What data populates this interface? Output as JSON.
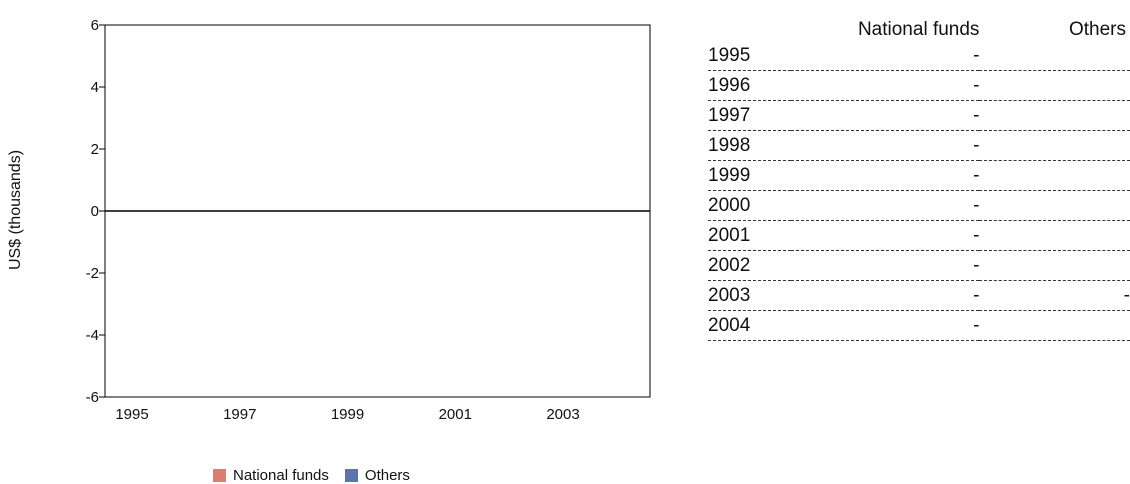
{
  "chart_data": {
    "type": "bar",
    "ylabel": "US$ (thousands)",
    "ylim": [
      -6,
      6
    ],
    "yticks": [
      "6",
      "4",
      "2",
      "0",
      "-2",
      "-4",
      "-6"
    ],
    "categories": [
      "1995",
      "1996",
      "1997",
      "1998",
      "1999",
      "2000",
      "2001",
      "2002",
      "2003",
      "2004"
    ],
    "xtick_labels": [
      "1995",
      "1997",
      "1999",
      "2001",
      "2003"
    ],
    "series": [
      {
        "name": "National funds",
        "color": "#e07b72",
        "values": [
          0,
          0,
          0,
          0,
          0,
          0,
          0,
          0,
          0,
          0
        ]
      },
      {
        "name": "Others",
        "color": "#5b75a8",
        "values": [
          0,
          0,
          0,
          0,
          0,
          0,
          0,
          0,
          0,
          0
        ]
      }
    ],
    "grid": false,
    "legend_position": "bottom"
  },
  "table": {
    "headers": {
      "national": "National funds",
      "others": "Others"
    },
    "rows": [
      {
        "year": "1995",
        "national": "-",
        "others": ""
      },
      {
        "year": "1996",
        "national": "-",
        "others": ""
      },
      {
        "year": "1997",
        "national": "-",
        "others": ""
      },
      {
        "year": "1998",
        "national": "-",
        "others": ""
      },
      {
        "year": "1999",
        "national": "-",
        "others": ""
      },
      {
        "year": "2000",
        "national": "-",
        "others": ""
      },
      {
        "year": "2001",
        "national": "-",
        "others": ""
      },
      {
        "year": "2002",
        "national": "-",
        "others": ""
      },
      {
        "year": "2003",
        "national": "-",
        "others": "-"
      },
      {
        "year": "2004",
        "national": "-",
        "others": ""
      }
    ]
  }
}
